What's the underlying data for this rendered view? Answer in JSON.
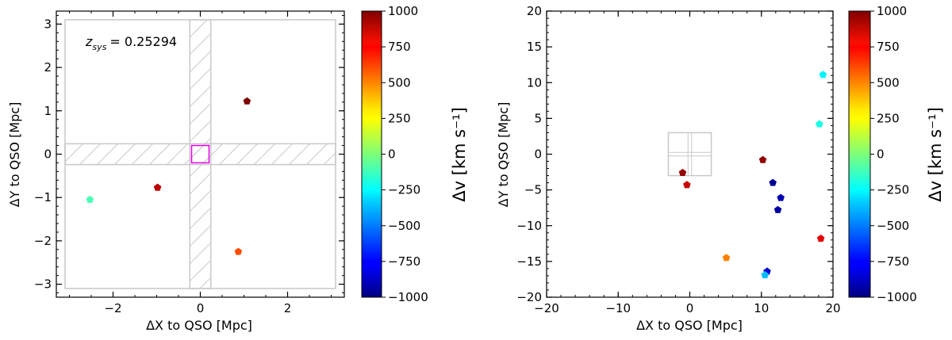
{
  "chart_data": [
    {
      "type": "scatter",
      "title": "",
      "xlabel": "ΔX to QSO [Mpc]",
      "ylabel": "ΔY to QSO [Mpc]",
      "xlim": [
        -3.3,
        3.3
      ],
      "ylim": [
        -3.3,
        3.3
      ],
      "xticks": [
        -2,
        0,
        2
      ],
      "yticks": [
        -3,
        -2,
        -1,
        0,
        1,
        2,
        3
      ],
      "annotation": {
        "label": "z",
        "subscript": "sys",
        "value": "= 0.25294"
      },
      "field_box": {
        "x": [
          -3.1,
          3.1
        ],
        "y": [
          -3.1,
          3.1
        ],
        "color": "#c8c8c8"
      },
      "hatched_strips": {
        "half_width": 0.24,
        "color": "#c8c8c8"
      },
      "qso_box": {
        "x": [
          -0.2,
          0.2
        ],
        "y": [
          -0.2,
          0.2
        ],
        "color": "#e600e6"
      },
      "points": [
        {
          "x": 1.07,
          "y": 1.22,
          "dv": 1000
        },
        {
          "x": -0.98,
          "y": -0.77,
          "dv": 880
        },
        {
          "x": -2.53,
          "y": -1.05,
          "dv": -100
        },
        {
          "x": 0.87,
          "y": -2.25,
          "dv": 600
        }
      ],
      "colorbar": {
        "label": "Δv [km s⁻¹]",
        "vmin": -1000,
        "vmax": 1000,
        "ticks": [
          "1000",
          "750",
          "500",
          "250",
          "0",
          "−250",
          "−500",
          "−750",
          "−1000"
        ]
      }
    },
    {
      "type": "scatter",
      "title": "",
      "xlabel": "ΔX to QSO [Mpc]",
      "ylabel": "ΔY to QSO [Mpc]",
      "xlim": [
        -20,
        20
      ],
      "ylim": [
        -20,
        20
      ],
      "xticks": [
        -20,
        -10,
        0,
        10,
        20
      ],
      "yticks": [
        -20,
        -15,
        -10,
        -5,
        0,
        5,
        10,
        15,
        20
      ],
      "field_box": {
        "x": [
          -3,
          3
        ],
        "y": [
          -3,
          3
        ],
        "color": "#c8c8c8"
      },
      "points": [
        {
          "x": -1.0,
          "y": -2.6,
          "dv": 960
        },
        {
          "x": -0.4,
          "y": -4.3,
          "dv": 860
        },
        {
          "x": 10.2,
          "y": -0.8,
          "dv": 960
        },
        {
          "x": 11.6,
          "y": -4.0,
          "dv": -960
        },
        {
          "x": 12.7,
          "y": -6.1,
          "dv": -900
        },
        {
          "x": 12.3,
          "y": -7.8,
          "dv": -930
        },
        {
          "x": 18.6,
          "y": 11.1,
          "dv": -270
        },
        {
          "x": 18.1,
          "y": 4.2,
          "dv": -200
        },
        {
          "x": 18.3,
          "y": -11.8,
          "dv": 800
        },
        {
          "x": 5.1,
          "y": -14.5,
          "dv": 500
        },
        {
          "x": 10.8,
          "y": -16.4,
          "dv": -820
        },
        {
          "x": 10.5,
          "y": -16.9,
          "dv": -380
        }
      ],
      "colorbar": {
        "label": "Δv [km s⁻¹]",
        "vmin": -1000,
        "vmax": 1000,
        "ticks": [
          "1000",
          "750",
          "500",
          "250",
          "0",
          "−250",
          "−500",
          "−750",
          "−1000"
        ]
      }
    }
  ]
}
